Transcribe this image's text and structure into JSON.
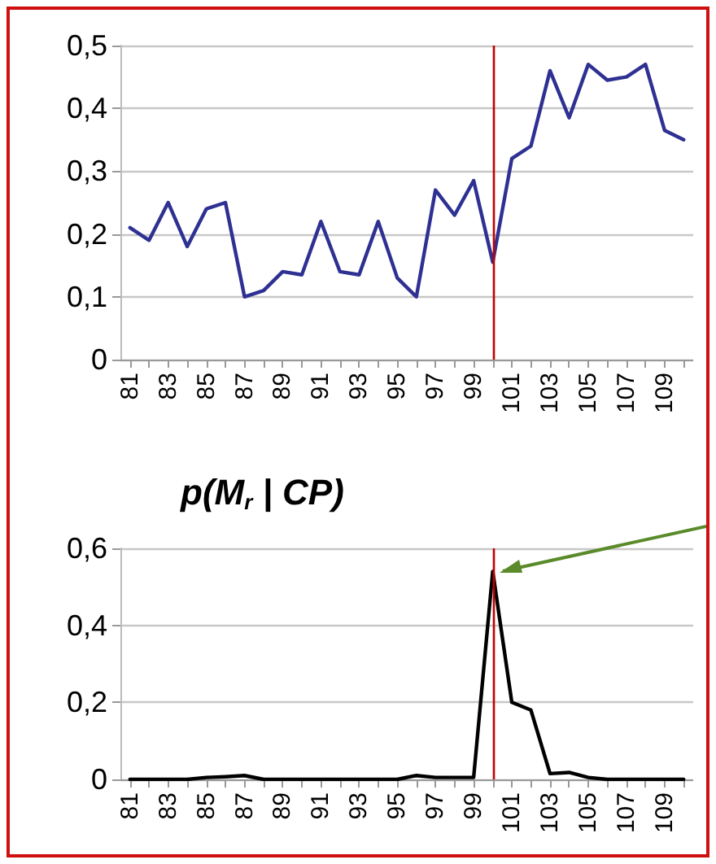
{
  "chart_data": [
    {
      "type": "line",
      "x": [
        81,
        82,
        83,
        84,
        85,
        86,
        87,
        88,
        89,
        90,
        91,
        92,
        93,
        94,
        95,
        96,
        97,
        98,
        99,
        100,
        101,
        102,
        103,
        104,
        105,
        106,
        107,
        108,
        109,
        110
      ],
      "xlim": [
        80.5,
        110.5
      ],
      "xticks": [
        81,
        {
          "value": 82,
          "label": null
        },
        83,
        {
          "value": 84,
          "label": null
        },
        85,
        {
          "value": 86,
          "label": null
        },
        87,
        {
          "value": 88,
          "label": null
        },
        89,
        {
          "value": 90,
          "label": null
        },
        91,
        {
          "value": 92,
          "label": null
        },
        93,
        {
          "value": 94,
          "label": null
        },
        95,
        {
          "value": 96,
          "label": null
        },
        97,
        {
          "value": 98,
          "label": null
        },
        99,
        {
          "value": 100,
          "label": null
        },
        101,
        {
          "value": 102,
          "label": null
        },
        103,
        {
          "value": 104,
          "label": null
        },
        105,
        {
          "value": 106,
          "label": null
        },
        107,
        {
          "value": 108,
          "label": null
        },
        109,
        {
          "value": 110,
          "label": null
        }
      ],
      "series": [
        {
          "color": "#2e3192",
          "values": [
            0.21,
            0.19,
            0.25,
            0.18,
            0.24,
            0.25,
            0.1,
            0.11,
            0.14,
            0.135,
            0.22,
            0.14,
            0.135,
            0.22,
            0.13,
            0.1,
            0.27,
            0.23,
            0.285,
            0.155,
            0.32,
            0.34,
            0.46,
            0.385,
            0.47,
            0.445,
            0.45,
            0.47,
            0.365,
            0.35
          ]
        }
      ],
      "ylim": [
        0,
        0.5
      ],
      "yticks": [
        0,
        {
          "value": 0.1,
          "label": "0,1"
        },
        {
          "value": 0.2,
          "label": "0,2"
        },
        {
          "value": 0.3,
          "label": "0,3"
        },
        {
          "value": 0.4,
          "label": "0,4"
        },
        {
          "value": 0.5,
          "label": "0,5"
        }
      ],
      "grid": "y",
      "marker": "none",
      "line_style": "solid",
      "ref_lines": [
        {
          "axis": "x",
          "value": 100,
          "color": "#c00000"
        }
      ]
    },
    {
      "type": "line",
      "title": "p(M$_{r}$ | CP)",
      "x": [
        81,
        82,
        83,
        84,
        85,
        86,
        87,
        88,
        89,
        90,
        91,
        92,
        93,
        94,
        95,
        96,
        97,
        98,
        99,
        100,
        101,
        102,
        103,
        104,
        105,
        106,
        107,
        108,
        109,
        110
      ],
      "xlim": [
        80.5,
        110.5
      ],
      "xticks": [
        81,
        {
          "value": 82,
          "label": null
        },
        83,
        {
          "value": 84,
          "label": null
        },
        85,
        {
          "value": 86,
          "label": null
        },
        87,
        {
          "value": 88,
          "label": null
        },
        89,
        {
          "value": 90,
          "label": null
        },
        91,
        {
          "value": 92,
          "label": null
        },
        93,
        {
          "value": 94,
          "label": null
        },
        95,
        {
          "value": 96,
          "label": null
        },
        97,
        {
          "value": 98,
          "label": null
        },
        99,
        {
          "value": 100,
          "label": null
        },
        101,
        {
          "value": 102,
          "label": null
        },
        103,
        {
          "value": 104,
          "label": null
        },
        105,
        {
          "value": 106,
          "label": null
        },
        107,
        {
          "value": 108,
          "label": null
        },
        109,
        {
          "value": 110,
          "label": null
        }
      ],
      "series": [
        {
          "color": "#000000",
          "values": [
            0,
            0,
            0,
            0,
            0.005,
            0.007,
            0.01,
            0,
            0,
            0,
            0,
            0,
            0,
            0,
            0,
            0.01,
            0.005,
            0.005,
            0.005,
            0.54,
            0.2,
            0.18,
            0.015,
            0.018,
            0.005,
            0,
            0,
            0,
            0,
            0
          ]
        }
      ],
      "ylim": [
        0,
        0.6
      ],
      "yticks": [
        0,
        {
          "value": 0.2,
          "label": "0,2"
        },
        {
          "value": 0.4,
          "label": "0,4"
        },
        {
          "value": 0.6,
          "label": "0,6"
        }
      ],
      "grid": "y",
      "marker": "none",
      "line_style": "solid",
      "ref_lines": [
        {
          "axis": "x",
          "value": 100,
          "color": "#c00000"
        }
      ]
    }
  ]
}
